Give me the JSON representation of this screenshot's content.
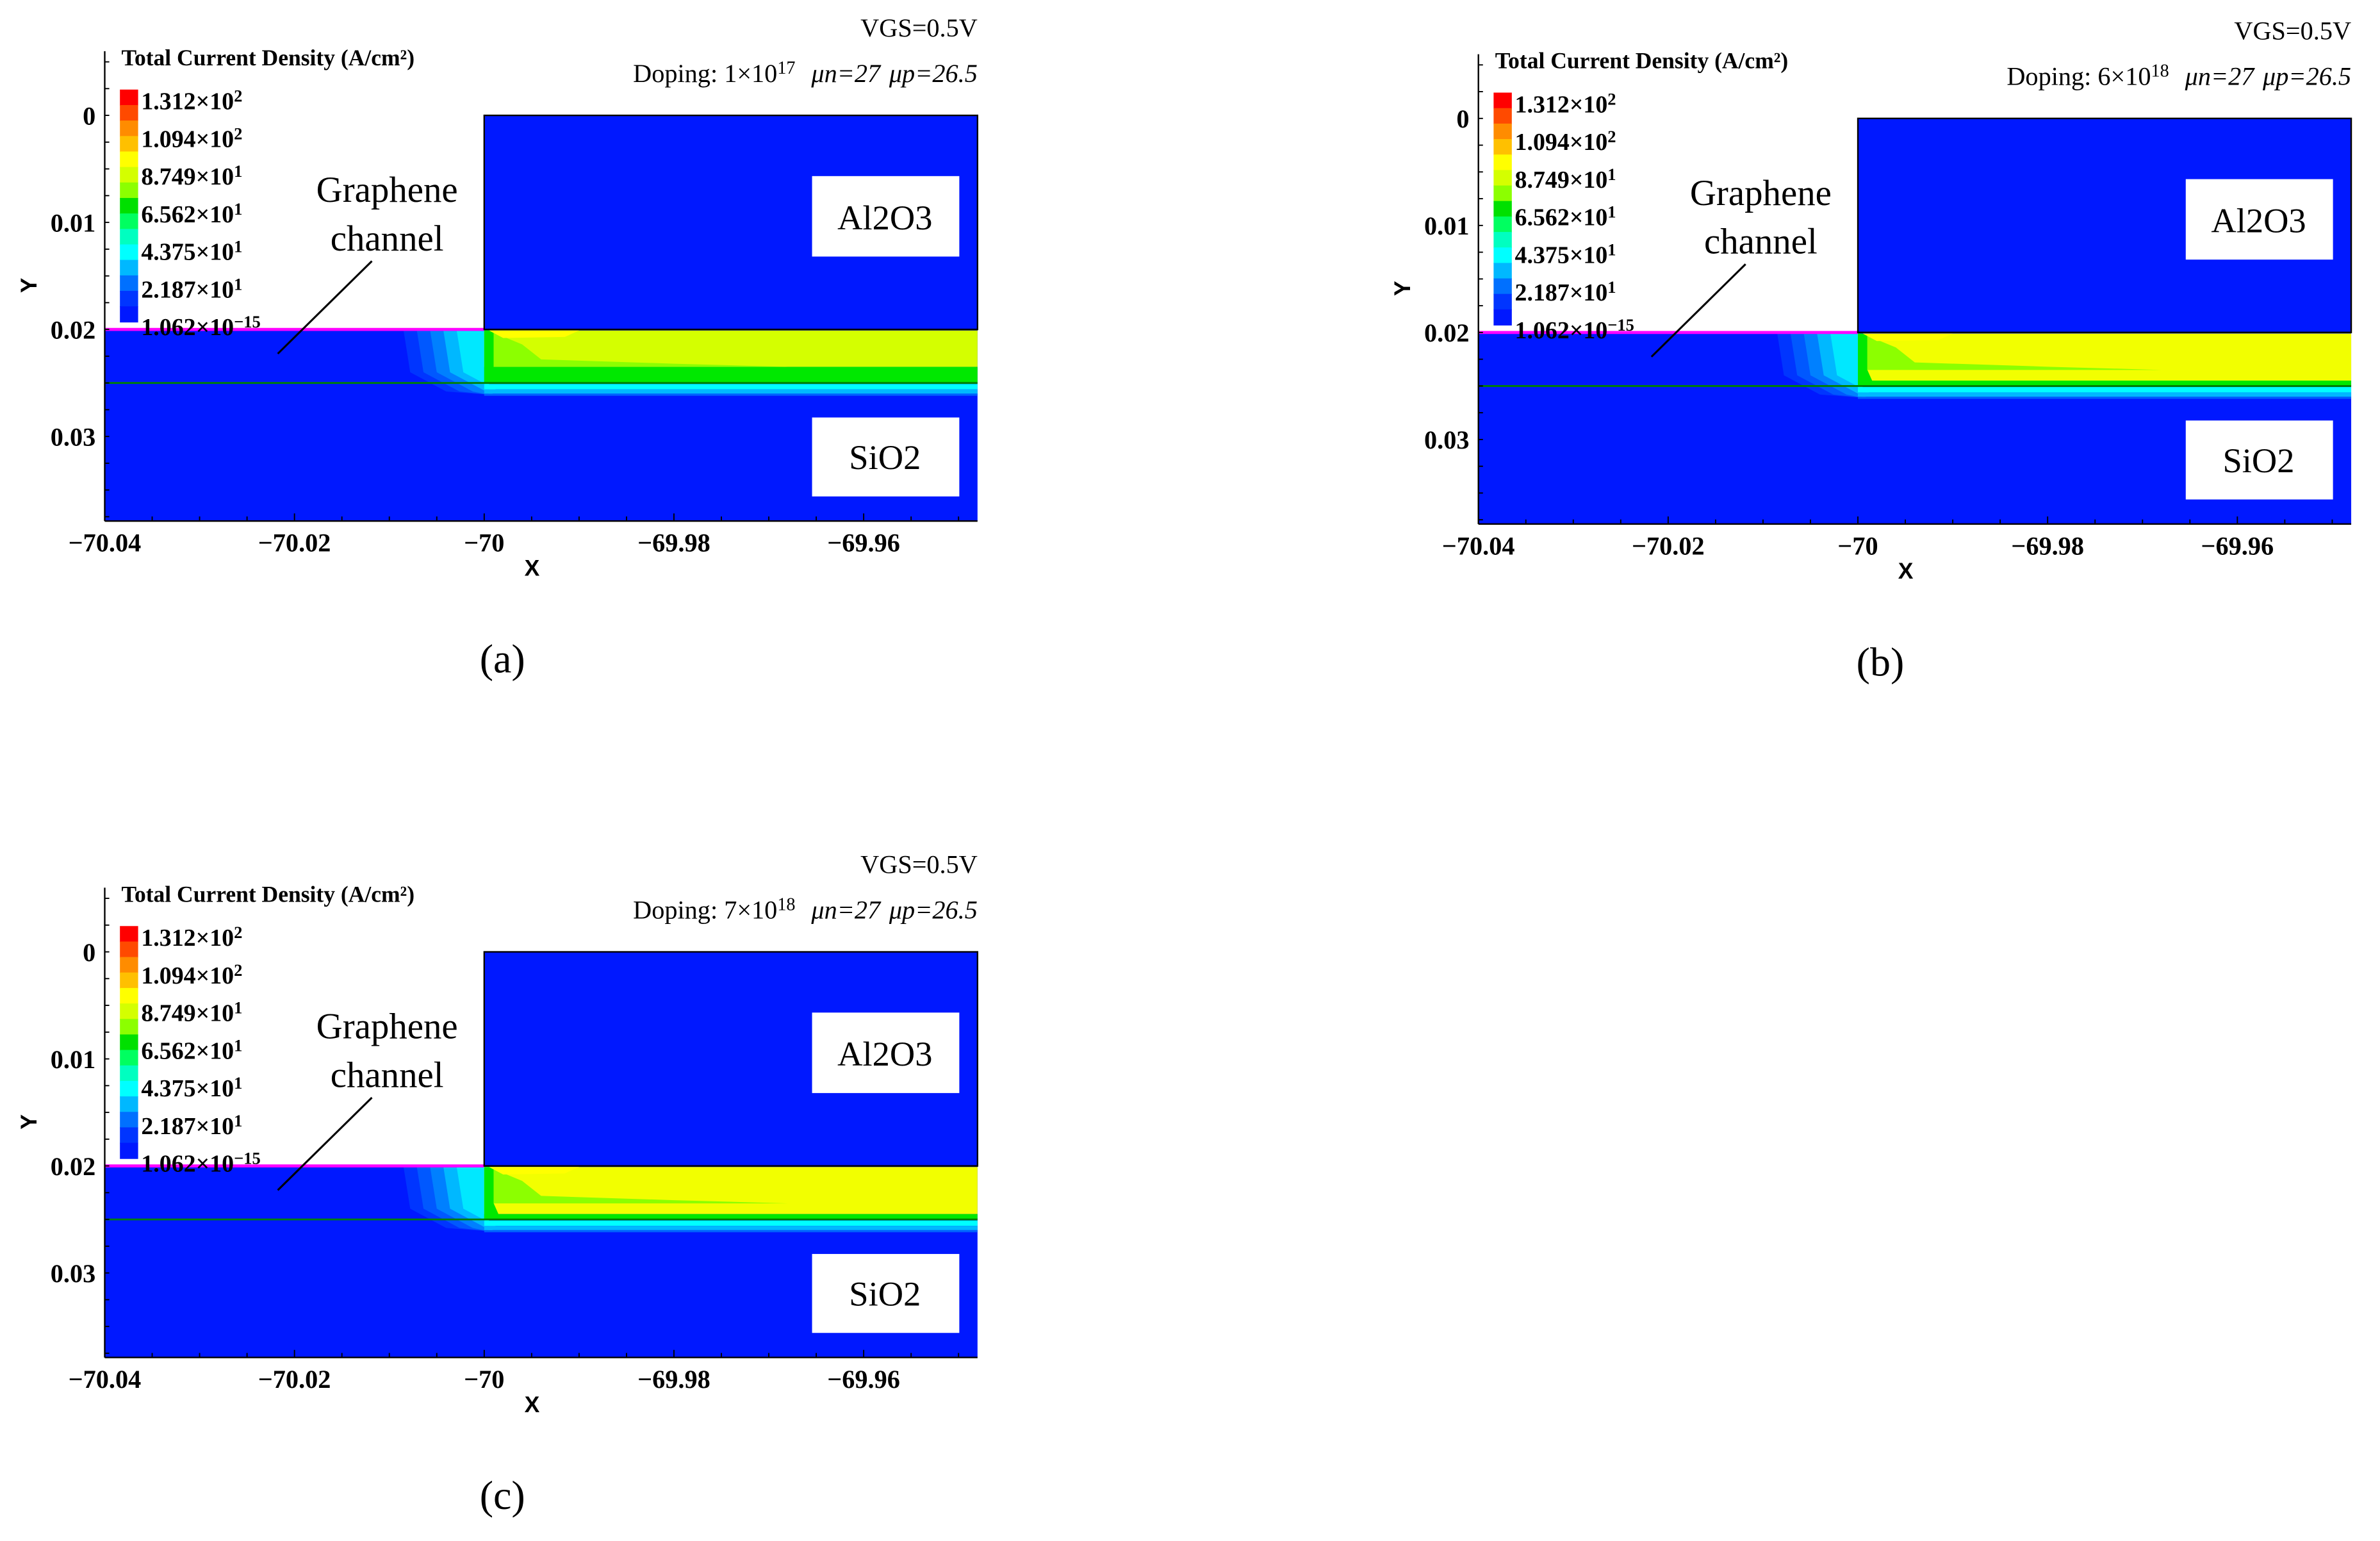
{
  "legend": {
    "title": "Total Current Density (A/cm²)",
    "levels": [
      "1.312×10²",
      "1.094×10²",
      "8.749×10¹",
      "6.562×10¹",
      "4.375×10¹",
      "2.187×10¹",
      "1.062×10⁻¹⁵"
    ],
    "colors": [
      "#ff0000",
      "#ff4a00",
      "#ff8c00",
      "#ffc000",
      "#ffff00",
      "#d4ff00",
      "#8cff00",
      "#00e000",
      "#00ff60",
      "#00ffc0",
      "#00ffff",
      "#00b8ff",
      "#0070ff",
      "#0035ff",
      "#0018ff"
    ]
  },
  "materials": {
    "top": "Al2O3",
    "bottom": "SiO2",
    "channel_label": [
      "Graphene",
      "channel"
    ]
  },
  "colors": {
    "oxide": "#0018ff",
    "gate_interface": "#ff00ff",
    "channel_line": "#008000"
  },
  "chart_data": [
    {
      "type": "heatmap",
      "panel": "(a)",
      "vgs": "VGS=0.5V",
      "doping": "Doping: 1×10¹⁷",
      "mu_n": "μn=27",
      "mu_p": "μp=26.5",
      "xlabel": "X",
      "ylabel": "Y",
      "xlim": [
        -70.04,
        -69.948
      ],
      "ylim": [
        -0.006,
        0.0379
      ],
      "y_inverted": true,
      "xticks": [
        "−70.04",
        "−70.02",
        "−70",
        "−69.98",
        "−69.96"
      ],
      "xtick_values": [
        -70.04,
        -70.02,
        -70,
        -69.98,
        -69.96
      ],
      "yticks": [
        "0",
        "0.01",
        "0.02",
        "0.03"
      ],
      "ytick_values": [
        0,
        0.01,
        0.02,
        0.03
      ],
      "channel_current_density_A_cm2": 80
    },
    {
      "type": "heatmap",
      "panel": "(b)",
      "vgs": "VGS=0.5V",
      "doping": "Doping: 6×10¹⁸",
      "mu_n": "μn=27",
      "mu_p": "μp=26.5",
      "xlabel": "X",
      "ylabel": "Y",
      "xlim": [
        -70.04,
        -69.948
      ],
      "ylim": [
        -0.006,
        0.0379
      ],
      "y_inverted": true,
      "xticks": [
        "−70.04",
        "−70.02",
        "−70",
        "−69.98",
        "−69.96"
      ],
      "xtick_values": [
        -70.04,
        -70.02,
        -70,
        -69.98,
        -69.96
      ],
      "yticks": [
        "0",
        "0.01",
        "0.02",
        "0.03"
      ],
      "ytick_values": [
        0,
        0.01,
        0.02,
        0.03
      ],
      "channel_current_density_A_cm2": 88
    },
    {
      "type": "heatmap",
      "panel": "(c)",
      "vgs": "VGS=0.5V",
      "doping": "Doping: 7×10¹⁸",
      "mu_n": "μn=27",
      "mu_p": "μp=26.5",
      "xlabel": "X",
      "ylabel": "Y",
      "xlim": [
        -70.04,
        -69.948
      ],
      "ylim": [
        -0.006,
        0.0379
      ],
      "y_inverted": true,
      "xticks": [
        "−70.04",
        "−70.02",
        "−70",
        "−69.98",
        "−69.96"
      ],
      "xtick_values": [
        -70.04,
        -70.02,
        -70,
        -69.98,
        -69.96
      ],
      "yticks": [
        "0",
        "0.01",
        "0.02",
        "0.03"
      ],
      "ytick_values": [
        0,
        0.01,
        0.02,
        0.03
      ],
      "channel_current_density_A_cm2": 92
    }
  ]
}
